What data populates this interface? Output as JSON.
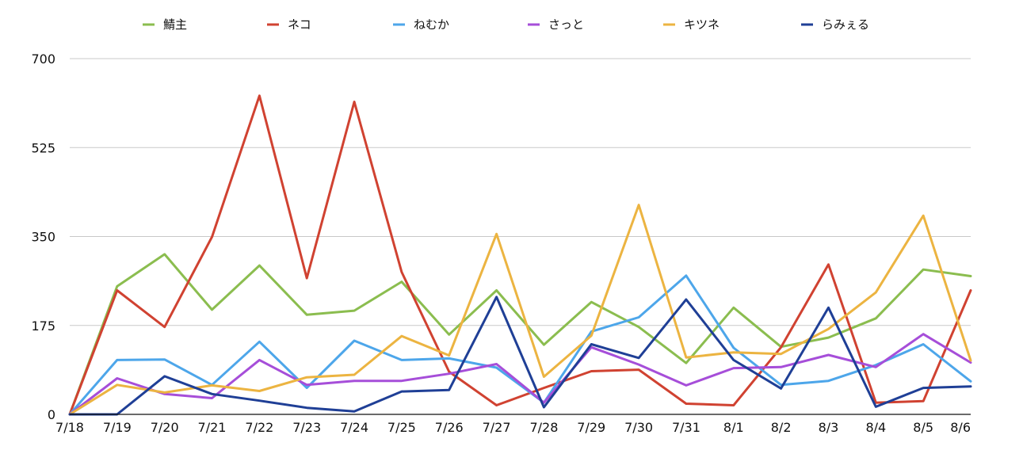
{
  "chart_data": {
    "type": "line",
    "title": "",
    "xlabel": "",
    "ylabel": "",
    "ylim": [
      0,
      700
    ],
    "yticks": [
      0,
      175,
      350,
      525,
      700
    ],
    "grid": true,
    "legend_position": "top",
    "categories": [
      "7/18",
      "7/19",
      "7/20",
      "7/21",
      "7/22",
      "7/23",
      "7/24",
      "7/25",
      "7/26",
      "7/27",
      "7/28",
      "7/29",
      "7/30",
      "7/31",
      "8/1",
      "8/2",
      "8/3",
      "8/4",
      "8/5",
      "8/6"
    ],
    "series": [
      {
        "name": "鯖主",
        "color": "#8bbd4f",
        "values": [
          0,
          252,
          315,
          206,
          293,
          196,
          204,
          261,
          157,
          244,
          137,
          221,
          172,
          101,
          210,
          133,
          151,
          189,
          285,
          272
        ]
      },
      {
        "name": "ネコ",
        "color": "#d04231",
        "values": [
          0,
          244,
          172,
          349,
          627,
          268,
          615,
          280,
          84,
          18,
          52,
          85,
          88,
          21,
          18,
          132,
          295,
          23,
          26,
          244
        ]
      },
      {
        "name": "ねむか",
        "color": "#4da6ea",
        "values": [
          0,
          107,
          108,
          58,
          143,
          52,
          145,
          107,
          110,
          92,
          23,
          163,
          191,
          273,
          131,
          58,
          66,
          97,
          138,
          65
        ]
      },
      {
        "name": "さっと",
        "color": "#a64ed9",
        "values": [
          0,
          71,
          40,
          32,
          107,
          58,
          66,
          66,
          80,
          99,
          23,
          132,
          98,
          57,
          91,
          93,
          117,
          93,
          158,
          102
        ]
      },
      {
        "name": "キツネ",
        "color": "#ecb441",
        "values": [
          0,
          58,
          43,
          57,
          46,
          73,
          78,
          154,
          116,
          355,
          74,
          155,
          412,
          112,
          122,
          119,
          168,
          240,
          391,
          106
        ]
      },
      {
        "name": "らみぇる",
        "color": "#1f3f96",
        "values": [
          0,
          0,
          75,
          40,
          27,
          13,
          6,
          45,
          48,
          231,
          14,
          138,
          111,
          226,
          107,
          51,
          210,
          15,
          52,
          55
        ]
      }
    ]
  }
}
